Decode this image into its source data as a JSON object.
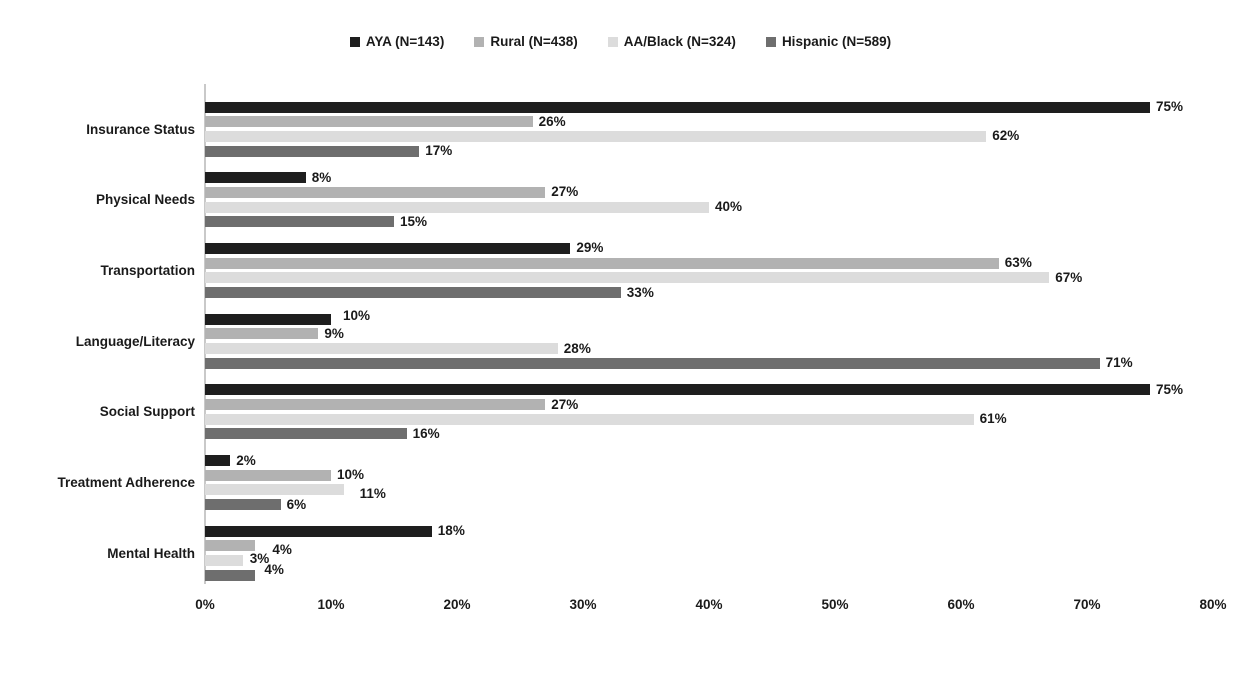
{
  "chart_data": {
    "type": "bar",
    "orientation": "horizontal",
    "title": "",
    "categories": [
      "Insurance Status",
      "Physical Needs",
      "Transportation",
      "Language/Literacy",
      "Social Support",
      "Treatment Adherence",
      "Mental Health"
    ],
    "series": [
      {
        "name": "AYA (N=143)",
        "color": "#1e1e1e",
        "values": [
          75,
          8,
          29,
          10,
          75,
          2,
          18
        ]
      },
      {
        "name": "Rural (N=438)",
        "color": "#b2b2b2",
        "values": [
          26,
          27,
          63,
          9,
          27,
          10,
          4
        ]
      },
      {
        "name": "AA/Black (N=324)",
        "color": "#dcdcdc",
        "values": [
          62,
          40,
          67,
          28,
          61,
          11,
          3
        ]
      },
      {
        "name": "Hispanic (N=589)",
        "color": "#6e6e6e",
        "values": [
          17,
          15,
          33,
          71,
          16,
          6,
          4
        ]
      }
    ],
    "value_suffix": "%",
    "x_ticks": [
      "0%",
      "10%",
      "20%",
      "30%",
      "40%",
      "50%",
      "60%",
      "70%",
      "80%"
    ],
    "xlim": [
      0,
      80
    ],
    "legend_position": "top",
    "grid": false,
    "axis_line_color": "#c9c9c9",
    "data_label_offsets": {
      "3,0": {
        "dx": 6,
        "dy": -3
      },
      "5,2": {
        "dx": 10,
        "dy": 4
      },
      "6,1": {
        "dx": 11,
        "dy": 4
      },
      "6,2": {
        "dx": 1,
        "dy": -2
      },
      "6,3": {
        "dx": 3,
        "dy": -5
      }
    }
  }
}
